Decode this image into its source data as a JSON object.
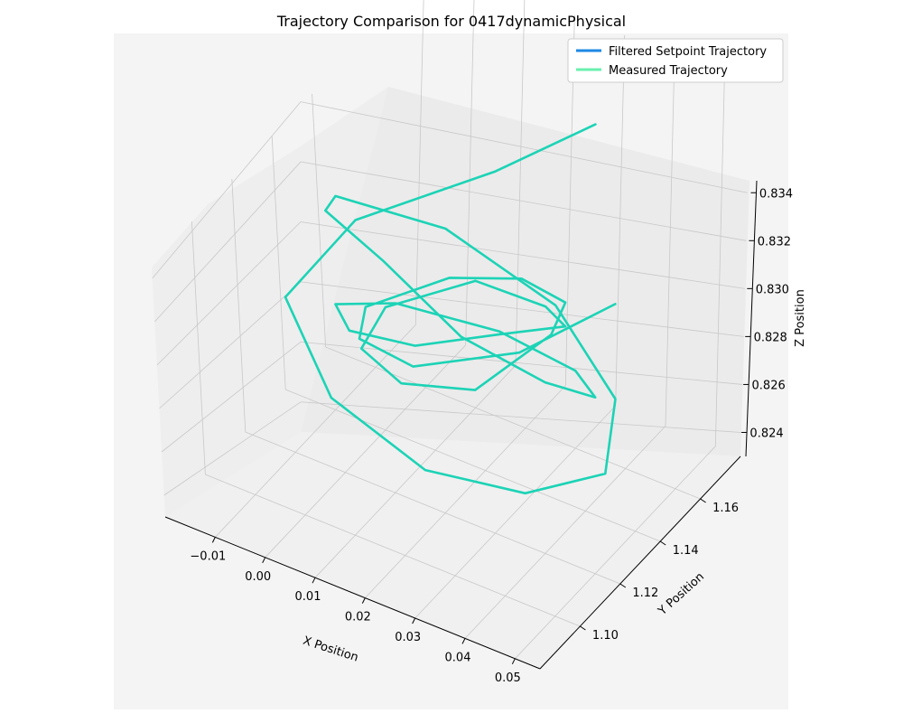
{
  "chart_data": {
    "type": "line",
    "projection": "3d",
    "title": "Trajectory Comparison for 0417dynamicPhysical",
    "xlabel": "X Position",
    "ylabel": "Y Position",
    "zlabel": "Z Position",
    "xlim": [
      -0.02,
      0.055
    ],
    "ylim": [
      1.08,
      1.18
    ],
    "zlim": [
      0.823,
      0.8345
    ],
    "xticks": [
      "−0.01",
      "0.00",
      "0.01",
      "0.02",
      "0.03",
      "0.04",
      "0.05"
    ],
    "xtick_values": [
      -0.01,
      0.0,
      0.01,
      0.02,
      0.03,
      0.04,
      0.05
    ],
    "yticks": [
      "1.10",
      "1.12",
      "1.14",
      "1.16"
    ],
    "ytick_values": [
      1.1,
      1.12,
      1.14,
      1.16
    ],
    "zticks": [
      "0.824",
      "0.826",
      "0.828",
      "0.830",
      "0.832",
      "0.834"
    ],
    "ztick_values": [
      0.824,
      0.826,
      0.828,
      0.83,
      0.832,
      0.834
    ],
    "grid": true,
    "legend": {
      "position": "top-right"
    },
    "series": [
      {
        "name": "Filtered Setpoint Trajectory",
        "color": "#1e88e5",
        "x": [
          0.032,
          0.018,
          -0.002,
          -0.008,
          0.006,
          0.024,
          0.038,
          0.046,
          0.04,
          0.024,
          0.004,
          -0.01,
          -0.004,
          0.014,
          0.032,
          0.044,
          0.046,
          0.034,
          0.014,
          -0.004,
          -0.008,
          0.004,
          0.022,
          0.036,
          0.042,
          0.03,
          0.01,
          -0.004,
          0.0,
          0.016,
          0.034,
          0.042,
          0.036,
          0.02,
          0.004,
          -0.006,
          0.002,
          0.02,
          0.038,
          0.048
        ],
        "y": [
          1.165,
          1.15,
          1.13,
          1.11,
          1.098,
          1.1,
          1.115,
          1.135,
          1.155,
          1.165,
          1.16,
          1.14,
          1.12,
          1.104,
          1.098,
          1.11,
          1.13,
          1.15,
          1.162,
          1.155,
          1.135,
          1.112,
          1.1,
          1.106,
          1.125,
          1.145,
          1.16,
          1.15,
          1.128,
          1.108,
          1.1,
          1.118,
          1.14,
          1.158,
          1.162,
          1.145,
          1.122,
          1.104,
          1.112,
          1.135
        ],
        "z": [
          0.8325,
          0.8312,
          0.8298,
          0.8284,
          0.827,
          0.8258,
          0.825,
          0.8248,
          0.8254,
          0.8266,
          0.828,
          0.8294,
          0.8306,
          0.8312,
          0.8304,
          0.829,
          0.8274,
          0.8262,
          0.8254,
          0.8256,
          0.8266,
          0.828,
          0.8294,
          0.8302,
          0.8296,
          0.8282,
          0.8268,
          0.8258,
          0.8262,
          0.8274,
          0.8288,
          0.8298,
          0.829,
          0.8276,
          0.8264,
          0.826,
          0.827,
          0.8284,
          0.8294,
          0.83
        ]
      },
      {
        "name": "Measured Trajectory",
        "color": "#69f0ae",
        "x": [
          0.032,
          0.018,
          -0.002,
          -0.008,
          0.006,
          0.024,
          0.038,
          0.046,
          0.04,
          0.024,
          0.004,
          -0.01,
          -0.004,
          0.014,
          0.032,
          0.044,
          0.046,
          0.034,
          0.014,
          -0.004,
          -0.008,
          0.004,
          0.022,
          0.036,
          0.042,
          0.03,
          0.01,
          -0.004,
          0.0,
          0.016,
          0.034,
          0.042,
          0.036,
          0.02,
          0.004,
          -0.006,
          0.002,
          0.02,
          0.038,
          0.048
        ],
        "y": [
          1.165,
          1.15,
          1.13,
          1.11,
          1.098,
          1.1,
          1.115,
          1.135,
          1.155,
          1.165,
          1.16,
          1.14,
          1.12,
          1.104,
          1.098,
          1.11,
          1.13,
          1.15,
          1.162,
          1.155,
          1.135,
          1.112,
          1.1,
          1.106,
          1.125,
          1.145,
          1.16,
          1.15,
          1.128,
          1.108,
          1.1,
          1.118,
          1.14,
          1.158,
          1.162,
          1.145,
          1.122,
          1.104,
          1.112,
          1.135
        ],
        "z": [
          0.8325,
          0.8312,
          0.8298,
          0.8284,
          0.827,
          0.8258,
          0.825,
          0.8248,
          0.8254,
          0.8266,
          0.828,
          0.8294,
          0.8306,
          0.8312,
          0.8304,
          0.829,
          0.8274,
          0.8262,
          0.8254,
          0.8256,
          0.8266,
          0.828,
          0.8294,
          0.8302,
          0.8296,
          0.8282,
          0.8268,
          0.8258,
          0.8262,
          0.8274,
          0.8288,
          0.8298,
          0.829,
          0.8276,
          0.8264,
          0.826,
          0.827,
          0.8284,
          0.8294,
          0.83
        ]
      }
    ],
    "overlap_color": "#1dd3b6"
  }
}
